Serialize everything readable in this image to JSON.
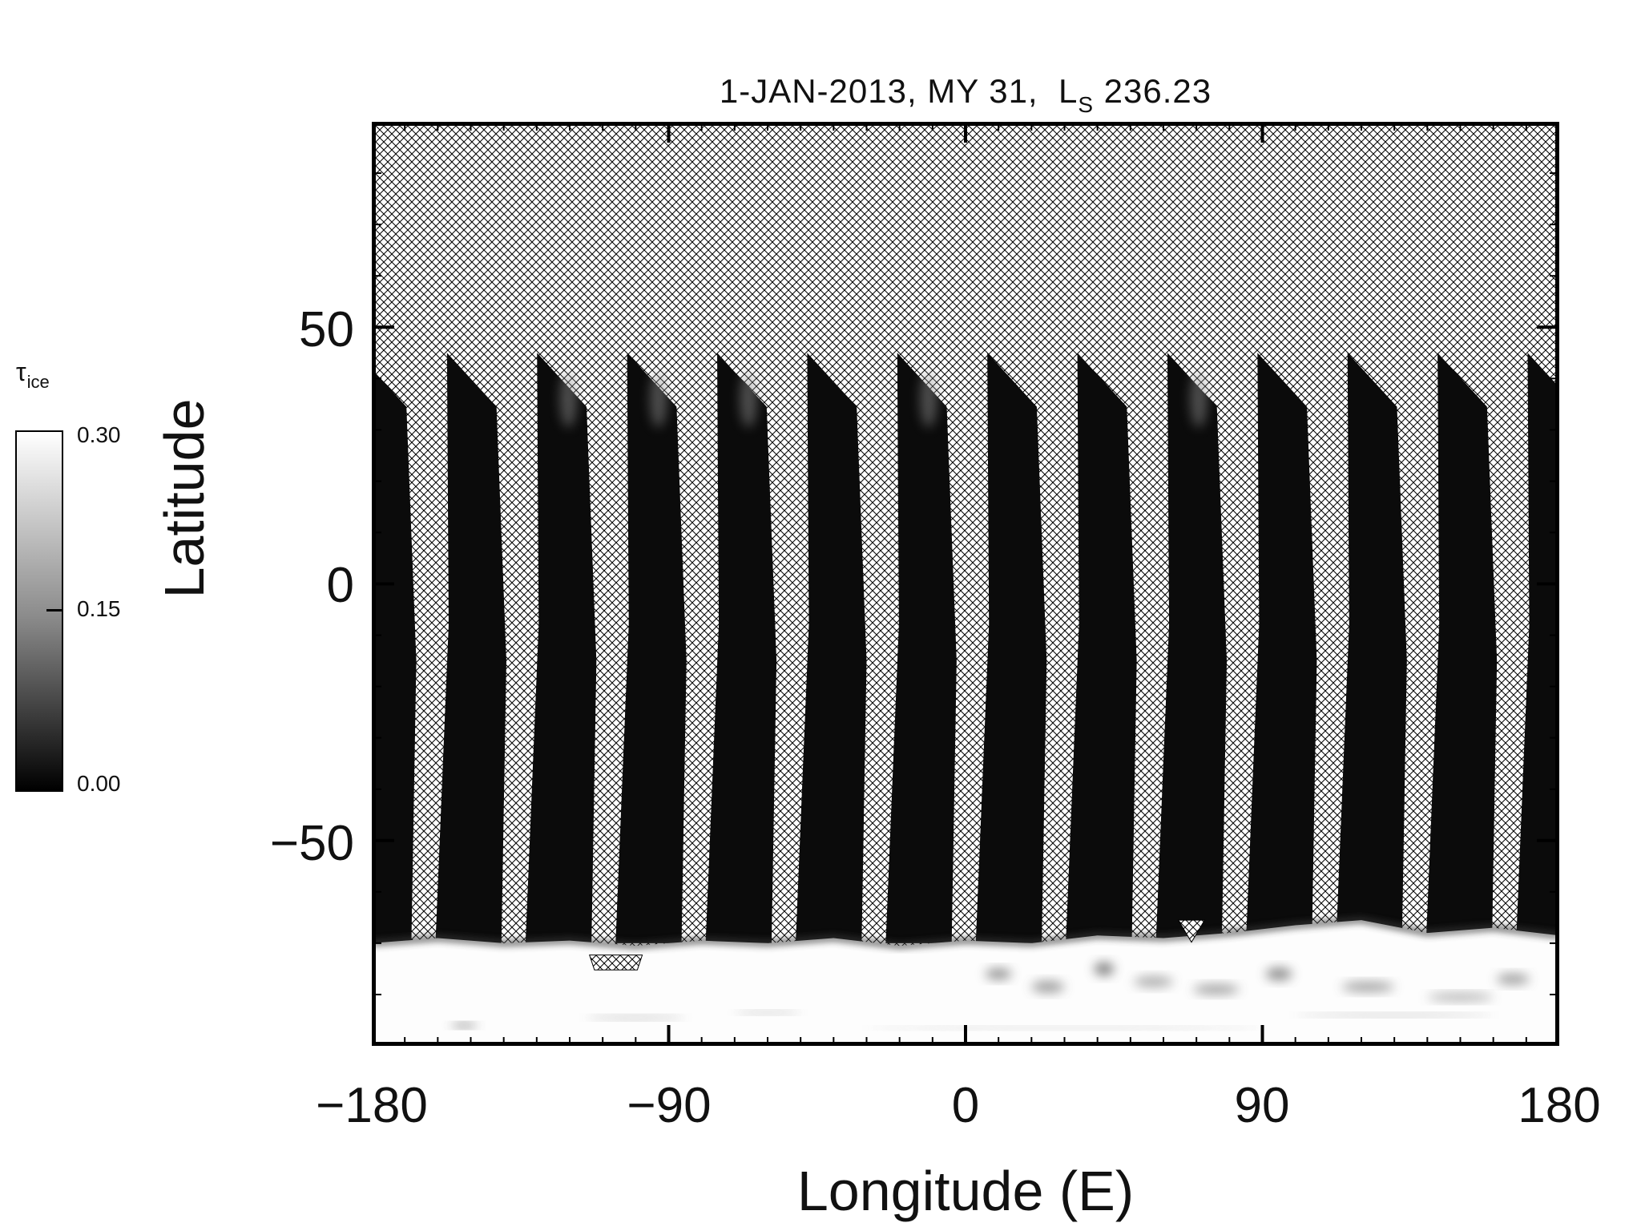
{
  "chart_data": {
    "type": "heatmap",
    "title": "1-JAN-2013, MY 31,  L_S 236.23",
    "title_render": {
      "pre": "1-JAN-2013, MY 31,  L",
      "sub": "S",
      "post": " 236.23"
    },
    "xlabel": "Longitude (E)",
    "ylabel": "Latitude",
    "xlim": [
      -180,
      180
    ],
    "ylim": [
      -90,
      90
    ],
    "x_major_ticks": {
      "values": [
        -180,
        -90,
        0,
        90,
        180
      ],
      "labels": [
        "−180",
        "−90",
        "0",
        "90",
        "180"
      ]
    },
    "x_minor_tick_step": 10,
    "y_major_ticks": {
      "values": [
        50,
        0,
        -50
      ],
      "labels": [
        "50",
        "0",
        "−50"
      ]
    },
    "y_minor_tick_step": 10,
    "colorbar": {
      "symbol": "τ",
      "symbol_sub": "ice",
      "min": 0.0,
      "max": 0.3,
      "tick_values": [
        0.3,
        0.15,
        0.0
      ],
      "tick_labels": [
        "0.30",
        "0.15",
        "0.00"
      ],
      "min_color": "#000000",
      "max_color": "#ffffff"
    },
    "background": "no-data cross-hatch over full map",
    "orbit_swaths": {
      "count": 14,
      "tau_value": 0.0,
      "color": "#0b0b0b",
      "tip_lat": 45,
      "bottom_lat": -70,
      "tip_lons_E": [
        -184.5,
        -157.2,
        -129.9,
        -102.6,
        -75.3,
        -48.0,
        -20.7,
        6.6,
        33.9,
        61.2,
        88.5,
        115.8,
        143.1,
        170.4
      ],
      "outline_offsets_deg": [
        [
          0,
          45
        ],
        [
          15,
          34.5
        ],
        [
          18,
          -15
        ],
        [
          16.5,
          -70
        ],
        [
          -3.5,
          -70
        ],
        [
          0.5,
          -8
        ]
      ],
      "bright_interior_swaths": [
        2,
        3,
        4,
        6,
        9
      ]
    },
    "south_polar_cloud_band": {
      "tau_value": 0.3,
      "fill_color": "#fdfdfd",
      "lat_bottom": -90,
      "boundary_lon": [
        -180,
        -160,
        -140,
        -120,
        -100,
        -80,
        -60,
        -40,
        -20,
        0,
        20,
        40,
        60,
        80,
        100,
        120,
        140,
        160,
        180
      ],
      "boundary_lat": [
        -70,
        -69,
        -70,
        -69.5,
        -70.5,
        -69.5,
        -70,
        -69,
        -70.5,
        -69.5,
        -70,
        -68.5,
        -69,
        -68,
        -66.5,
        -65.5,
        -68,
        -67,
        -68.5
      ]
    },
    "no_data_patches": [
      {
        "shape": "triangle",
        "points_lonlat": [
          [
            64.5,
            -65.5
          ],
          [
            72.5,
            -65.5
          ],
          [
            68.5,
            -69.8
          ]
        ]
      },
      {
        "shape": "quad",
        "points_lonlat": [
          [
            -114,
            -72.3
          ],
          [
            -98,
            -72.3
          ],
          [
            -99.5,
            -75.2
          ],
          [
            -112.5,
            -75.2
          ]
        ]
      }
    ],
    "polar_band_wisps": [
      {
        "lon": -152,
        "lat": -86,
        "w": 8,
        "h": 0.8,
        "color": "#555555"
      },
      {
        "lon": -100,
        "lat": -84.5,
        "w": 30,
        "h": 0.7,
        "color": "#aaaaaa"
      },
      {
        "lon": -60,
        "lat": -83.5,
        "w": 20,
        "h": 0.6,
        "color": "#aaaaaa"
      },
      {
        "lon": 10,
        "lat": -76,
        "w": 8,
        "h": 2.0,
        "color": "#777777"
      },
      {
        "lon": 25,
        "lat": -78.5,
        "w": 10,
        "h": 2.2,
        "color": "#888888"
      },
      {
        "lon": 42,
        "lat": -75,
        "w": 6,
        "h": 2.5,
        "color": "#666666"
      },
      {
        "lon": 57,
        "lat": -77.5,
        "w": 12,
        "h": 2.0,
        "color": "#999999"
      },
      {
        "lon": 76,
        "lat": -79,
        "w": 14,
        "h": 1.8,
        "color": "#888888"
      },
      {
        "lon": 95,
        "lat": -76,
        "w": 8,
        "h": 2.4,
        "color": "#777777"
      },
      {
        "lon": 122,
        "lat": -78.5,
        "w": 16,
        "h": 1.8,
        "color": "#888888"
      },
      {
        "lon": 150,
        "lat": -80.5,
        "w": 20,
        "h": 1.4,
        "color": "#999999"
      },
      {
        "lon": 166,
        "lat": -77,
        "w": 10,
        "h": 2.0,
        "color": "#888888"
      },
      {
        "lon": 30,
        "lat": -86.5,
        "w": 120,
        "h": 0.5,
        "color": "#bbbbbb"
      },
      {
        "lon": 130,
        "lat": -84,
        "w": 60,
        "h": 0.6,
        "color": "#aaaaaa"
      }
    ]
  }
}
